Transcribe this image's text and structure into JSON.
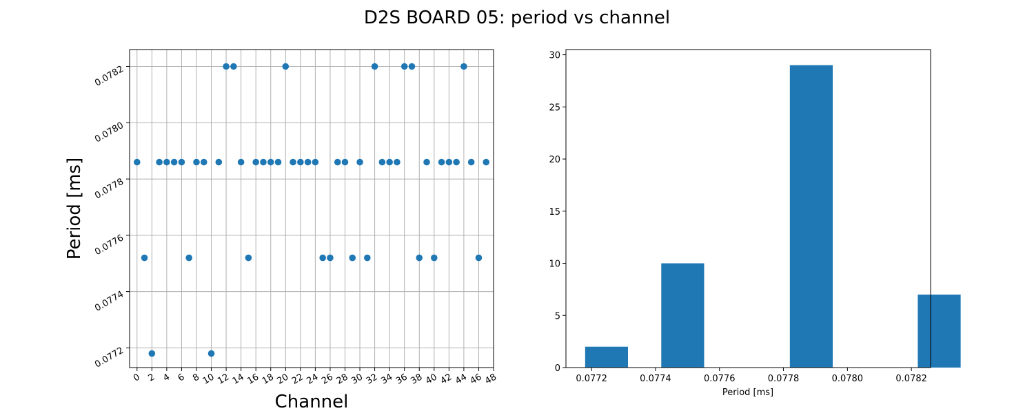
{
  "title": "D2S BOARD 05: period vs channel",
  "chart_data": [
    {
      "type": "scatter",
      "xlabel": "Channel",
      "ylabel": "Period [ms]",
      "xlim": [
        -1,
        48
      ],
      "ylim": [
        0.07713,
        0.07826
      ],
      "x_ticks": [
        0,
        2,
        4,
        6,
        8,
        10,
        12,
        14,
        16,
        18,
        20,
        22,
        24,
        26,
        28,
        30,
        32,
        34,
        36,
        38,
        40,
        42,
        44,
        46,
        48
      ],
      "y_ticks": [
        0.0772,
        0.0774,
        0.0776,
        0.0778,
        0.078,
        0.0782
      ],
      "y_tick_labels": [
        "0.0772",
        "0.0774",
        "0.0776",
        "0.0778",
        "0.0780",
        "0.0782"
      ],
      "grid": true,
      "color": "#1f77b4",
      "x": [
        0,
        1,
        2,
        3,
        4,
        5,
        6,
        7,
        8,
        9,
        10,
        11,
        12,
        13,
        14,
        15,
        16,
        17,
        18,
        19,
        20,
        21,
        22,
        23,
        24,
        25,
        26,
        27,
        28,
        29,
        30,
        31,
        32,
        33,
        34,
        35,
        36,
        37,
        38,
        39,
        40,
        41,
        42,
        43,
        44,
        45,
        46,
        47
      ],
      "y": [
        0.07786,
        0.07752,
        0.07718,
        0.07786,
        0.07786,
        0.07786,
        0.07786,
        0.07752,
        0.07786,
        0.07786,
        0.07718,
        0.07786,
        0.0782,
        0.0782,
        0.07786,
        0.07752,
        0.07786,
        0.07786,
        0.07786,
        0.07786,
        0.0782,
        0.07786,
        0.07786,
        0.07786,
        0.07786,
        0.07752,
        0.07752,
        0.07786,
        0.07786,
        0.07752,
        0.07786,
        0.07752,
        0.0782,
        0.07786,
        0.07786,
        0.07786,
        0.0782,
        0.0782,
        0.07752,
        0.07786,
        0.07752,
        0.07786,
        0.07786,
        0.07786,
        0.0782,
        0.07786,
        0.07752,
        0.07786
      ]
    },
    {
      "type": "bar",
      "xlabel": "Period [ms]",
      "ylabel": "",
      "xlim": [
        0.07712,
        0.07826
      ],
      "ylim": [
        0,
        30.5
      ],
      "x_ticks": [
        0.0772,
        0.0774,
        0.0776,
        0.0778,
        0.078,
        0.0782
      ],
      "x_tick_labels": [
        "0.0772",
        "0.0774",
        "0.0776",
        "0.0778",
        "0.0780",
        "0.0782"
      ],
      "y_ticks": [
        0,
        5,
        10,
        15,
        20,
        25,
        30
      ],
      "grid": false,
      "color": "#1f77b4",
      "bins": [
        {
          "start": 0.07718,
          "end": 0.077314,
          "count": 2
        },
        {
          "start": 0.077314,
          "end": 0.077418,
          "count": 0
        },
        {
          "start": 0.077418,
          "end": 0.077552,
          "count": 10
        },
        {
          "start": 0.077552,
          "end": 0.077656,
          "count": 0
        },
        {
          "start": 0.077656,
          "end": 0.07779,
          "count": 0
        },
        {
          "start": 0.07782,
          "end": 0.077954,
          "count": 29
        },
        {
          "start": 0.077954,
          "end": 0.078058,
          "count": 0
        },
        {
          "start": 0.078058,
          "end": 0.078192,
          "count": 0
        },
        {
          "start": 0.07822,
          "end": 0.078354,
          "count": 7
        }
      ]
    }
  ]
}
